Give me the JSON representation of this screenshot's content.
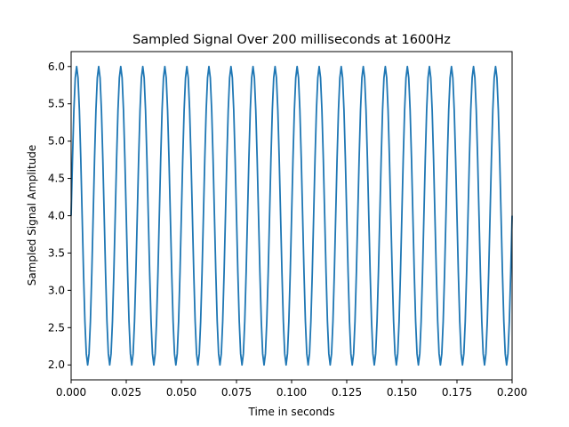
{
  "chart_data": {
    "type": "line",
    "title": "Sampled Signal Over 200 milliseconds at 1600Hz",
    "xlabel": "Time in seconds",
    "ylabel": "Sampled Signal Amplitude",
    "xlim": [
      0.0,
      0.2
    ],
    "ylim": [
      1.8,
      6.2
    ],
    "x_ticks": [
      "0.000",
      "0.025",
      "0.050",
      "0.075",
      "0.100",
      "0.125",
      "0.150",
      "0.175",
      "0.200"
    ],
    "y_ticks": [
      "2.0",
      "2.5",
      "3.0",
      "3.5",
      "4.0",
      "4.5",
      "5.0",
      "5.5",
      "6.0"
    ],
    "grid": false,
    "legend": "none",
    "colors": {
      "line": "#1f77b4",
      "axes": "#000000",
      "background": "#ffffff"
    },
    "series": [
      {
        "signal": "4 + 2*sin(2*pi*100*t)",
        "offset": 4.0,
        "amplitude": 2.0,
        "frequency_hz": 100,
        "sample_rate_hz": 1600,
        "t_start": 0.0,
        "t_end": 0.2
      }
    ]
  }
}
